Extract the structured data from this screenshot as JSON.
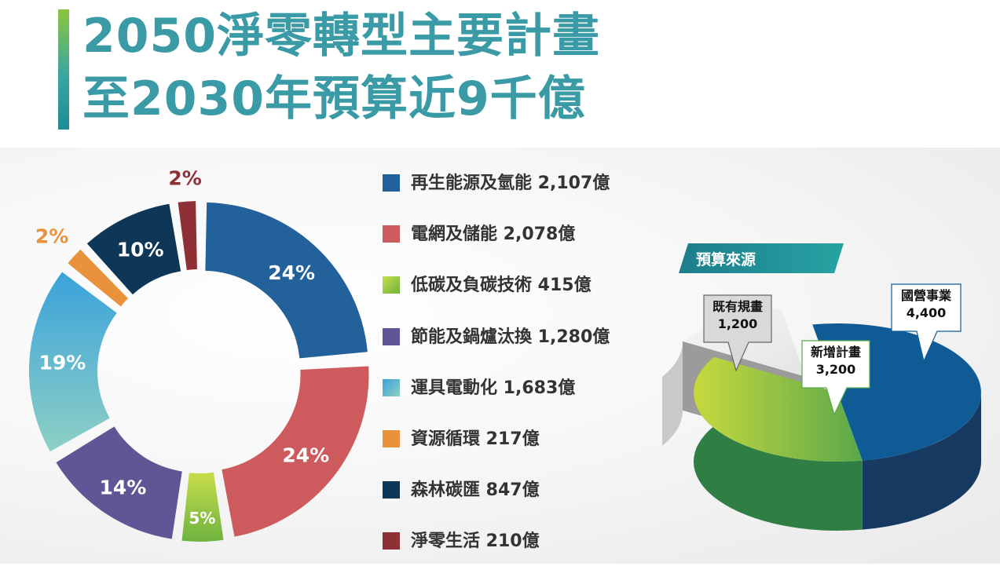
{
  "title": {
    "line1": "2050淨零轉型主要計畫",
    "line2": "至2030年預算近9千億"
  },
  "chart_data": [
    {
      "type": "donut",
      "categories": [
        "再生能源及氫能",
        "電網及儲能",
        "低碳及負碳技術",
        "節能及鍋爐汰換",
        "運具電動化",
        "資源循環",
        "森林碳匯",
        "淨零生活"
      ],
      "values": [
        2107,
        2078,
        415,
        1280,
        1683,
        217,
        847,
        210
      ],
      "unit": "億",
      "value_labels": [
        "2,107",
        "2,078",
        "415",
        "1,280",
        "1,683",
        "217",
        "847",
        "210"
      ],
      "percent_labels": [
        "24%",
        "24%",
        "5%",
        "14%",
        "19%",
        "2%",
        "10%",
        "2%"
      ],
      "colors": [
        "#23619b",
        "#cd5b5d",
        "#8cc63f",
        "#5f5696",
        "#3fa9d8",
        "#e9923b",
        "#0d3657",
        "#8e3035"
      ],
      "legend_placement": "right"
    },
    {
      "type": "pie",
      "style": "3d",
      "title": "預算來源",
      "categories": [
        "國營事業",
        "新增計畫",
        "既有規畫"
      ],
      "value_labels": [
        "4,400",
        "3,200",
        "1,200"
      ],
      "values": [
        4400,
        3200,
        1200
      ],
      "colors": [
        "#0f5b96",
        "#7ab648",
        "#eeeeee"
      ]
    }
  ],
  "source_title_bg": "#1e8c96"
}
